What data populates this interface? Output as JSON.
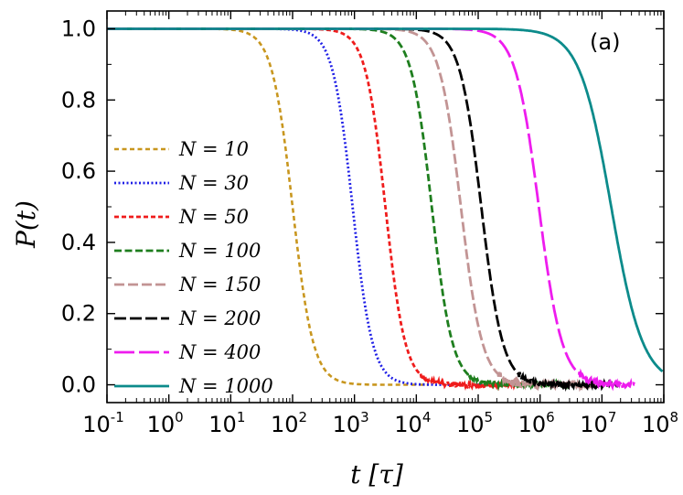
{
  "chart_data": {
    "type": "line",
    "panel_label": "(a)",
    "xlabel": "t [τ]",
    "ylabel": "P(t)",
    "xscale": "log",
    "xlim_log10": [
      -1,
      8
    ],
    "ylim": [
      -0.05,
      1.05
    ],
    "x_ticks": [
      {
        "base": "10",
        "exp": "-1"
      },
      {
        "base": "10",
        "exp": "0"
      },
      {
        "base": "10",
        "exp": "1"
      },
      {
        "base": "10",
        "exp": "2"
      },
      {
        "base": "10",
        "exp": "3"
      },
      {
        "base": "10",
        "exp": "4"
      },
      {
        "base": "10",
        "exp": "5"
      },
      {
        "base": "10",
        "exp": "6"
      },
      {
        "base": "10",
        "exp": "7"
      },
      {
        "base": "10",
        "exp": "8"
      }
    ],
    "y_ticks": [
      "0.0",
      "0.2",
      "0.4",
      "0.6",
      "0.8",
      "1.0"
    ],
    "legend_position": "left",
    "series": [
      {
        "name": "N=10",
        "label": "N = 10",
        "color": "#c8961e",
        "dash": "5,3.5",
        "width": 2.6,
        "log_t_half": 2.0,
        "steepness": 2.6,
        "noise": 0.0
      },
      {
        "name": "N=30",
        "label": "N = 30",
        "color": "#1f1fe6",
        "dash": "2,2.5",
        "width": 2.8,
        "log_t_half": 2.97,
        "steepness": 2.7,
        "noise": 0.0
      },
      {
        "name": "N=50",
        "label": "N = 50",
        "color": "#ef1c1c",
        "dash": "5,3",
        "width": 2.8,
        "log_t_half": 3.5,
        "steepness": 2.7,
        "noise": 0.007
      },
      {
        "name": "N=100",
        "label": "N = 100",
        "color": "#1e7e1e",
        "dash": "8,3.5",
        "width": 2.8,
        "log_t_half": 4.25,
        "steepness": 2.6,
        "noise": 0.006
      },
      {
        "name": "N=150",
        "label": "N = 150",
        "color": "#c29494",
        "dash": "11,4",
        "width": 2.8,
        "log_t_half": 4.72,
        "steepness": 2.5,
        "noise": 0.01
      },
      {
        "name": "N=200",
        "label": "N = 200",
        "color": "#000000",
        "dash": "13,4",
        "width": 2.8,
        "log_t_half": 5.05,
        "steepness": 2.5,
        "noise": 0.008
      },
      {
        "name": "N=400",
        "label": "N = 400",
        "color": "#ee1cee",
        "dash": "22,5",
        "width": 2.8,
        "log_t_half": 5.98,
        "steepness": 2.3,
        "noise": 0.008
      },
      {
        "name": "N=1000",
        "label": "N = 1000",
        "color": "#0c8b8b",
        "dash": "",
        "width": 2.8,
        "log_t_half": 7.15,
        "steepness": 1.7,
        "noise": 0.012
      }
    ]
  }
}
